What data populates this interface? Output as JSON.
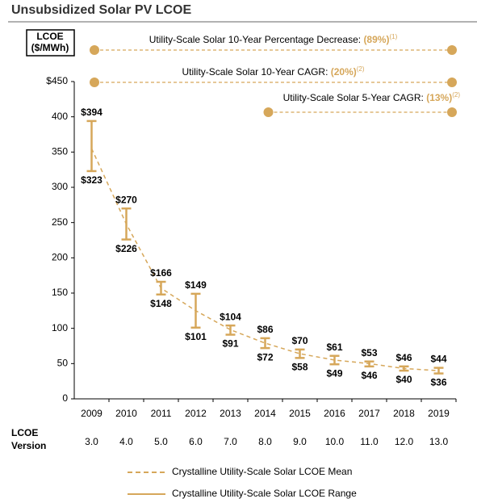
{
  "chart_data": {
    "type": "range",
    "title": "Unsubsidized Solar PV LCOE",
    "y_label_lines": [
      "LCOE",
      "($/MWh)"
    ],
    "categories": [
      "2009",
      "2010",
      "2011",
      "2012",
      "2013",
      "2014",
      "2015",
      "2016",
      "2017",
      "2018",
      "2019"
    ],
    "ylim": [
      0,
      450
    ],
    "yticks": [
      0,
      50,
      100,
      150,
      200,
      250,
      300,
      350,
      400,
      {
        "value": 450,
        "label": "$450"
      }
    ],
    "series": [
      {
        "name": "Crystalline Utility-Scale Solar LCOE Mean",
        "color": "#d6a75a",
        "style": "dashed",
        "values": [
          355,
          248,
          157,
          125,
          98,
          79,
          64,
          55,
          50,
          43,
          40
        ]
      },
      {
        "name": "Crystalline Utility-Scale Solar LCOE Range",
        "color": "#d6a75a",
        "style": "solid",
        "high": [
          394,
          270,
          166,
          149,
          104,
          86,
          70,
          61,
          53,
          46,
          44
        ],
        "high_labels": [
          "$394",
          "$270",
          "$166",
          "$149",
          "$104",
          "$86",
          "$70",
          "$61",
          "$53",
          "$46",
          "$44"
        ],
        "low": [
          323,
          226,
          148,
          101,
          91,
          72,
          58,
          49,
          46,
          40,
          36
        ],
        "low_labels": [
          "$323",
          "$226",
          "$148",
          "$101",
          "$91",
          "$72",
          "$58",
          "$49",
          "$46",
          "$40",
          "$36"
        ]
      }
    ],
    "version_label_lines": [
      "LCOE",
      "Version"
    ],
    "versions": [
      "3.0",
      "4.0",
      "5.0",
      "6.0",
      "7.0",
      "8.0",
      "9.0",
      "10.0",
      "11.0",
      "12.0",
      "13.0"
    ],
    "annotations": [
      {
        "text": "Utility-Scale Solar 10-Year Percentage Decrease: ",
        "value_label": "(89%)",
        "note": "(1)",
        "span": [
          "2009",
          "2019"
        ]
      },
      {
        "text": "Utility-Scale Solar 10-Year CAGR: ",
        "value_label": "(20%)",
        "note": "(2)",
        "span": [
          "2009",
          "2019"
        ]
      },
      {
        "text": "Utility-Scale Solar 5-Year CAGR: ",
        "value_label": "(13%)",
        "note": "(2)",
        "span": [
          "2014",
          "2019"
        ]
      }
    ]
  }
}
